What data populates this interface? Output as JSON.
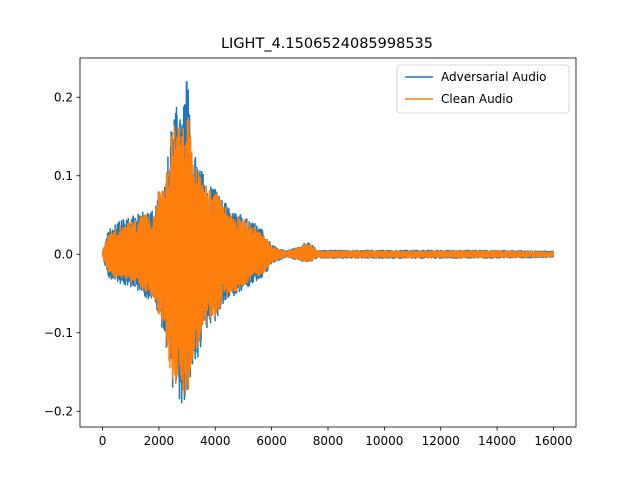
{
  "chart_data": {
    "type": "line",
    "title": "LIGHT_4.1506524085998535",
    "xlabel": "",
    "ylabel": "",
    "xlim": [
      -800,
      16800
    ],
    "ylim": [
      -0.22,
      0.25
    ],
    "x_ticks": [
      {
        "value": 0,
        "label": "0"
      },
      {
        "value": 2000,
        "label": "2000"
      },
      {
        "value": 4000,
        "label": "4000"
      },
      {
        "value": 6000,
        "label": "6000"
      },
      {
        "value": 8000,
        "label": "8000"
      },
      {
        "value": 10000,
        "label": "10000"
      },
      {
        "value": 12000,
        "label": "12000"
      },
      {
        "value": 14000,
        "label": "14000"
      },
      {
        "value": 16000,
        "label": "16000"
      }
    ],
    "y_ticks": [
      {
        "value": -0.2,
        "label": "−0.2"
      },
      {
        "value": -0.1,
        "label": "−0.1"
      },
      {
        "value": 0.0,
        "label": "0.0"
      },
      {
        "value": 0.1,
        "label": "0.1"
      },
      {
        "value": 0.2,
        "label": "0.2"
      }
    ],
    "grid": false,
    "legend_position": "top-right",
    "series": [
      {
        "name": "Adversarial Audio",
        "color": "#1f77b4",
        "num_samples": 16000,
        "approx_range": [
          -0.198,
          0.228
        ],
        "envelope": [
          {
            "x": 0,
            "min": -0.002,
            "max": 0.003
          },
          {
            "x": 200,
            "min": -0.03,
            "max": 0.03
          },
          {
            "x": 500,
            "min": -0.035,
            "max": 0.04
          },
          {
            "x": 800,
            "min": -0.04,
            "max": 0.045
          },
          {
            "x": 1000,
            "min": -0.042,
            "max": 0.048
          },
          {
            "x": 1200,
            "min": -0.045,
            "max": 0.05
          },
          {
            "x": 1500,
            "min": -0.055,
            "max": 0.055
          },
          {
            "x": 1800,
            "min": -0.06,
            "max": 0.055
          },
          {
            "x": 2000,
            "min": -0.085,
            "max": 0.085
          },
          {
            "x": 2200,
            "min": -0.1,
            "max": 0.09
          },
          {
            "x": 2400,
            "min": -0.16,
            "max": 0.15
          },
          {
            "x": 2600,
            "min": -0.185,
            "max": 0.195
          },
          {
            "x": 2800,
            "min": -0.195,
            "max": 0.175
          },
          {
            "x": 3000,
            "min": -0.19,
            "max": 0.228
          },
          {
            "x": 3200,
            "min": -0.14,
            "max": 0.135
          },
          {
            "x": 3400,
            "min": -0.13,
            "max": 0.115
          },
          {
            "x": 3600,
            "min": -0.11,
            "max": 0.1
          },
          {
            "x": 3800,
            "min": -0.09,
            "max": 0.09
          },
          {
            "x": 4000,
            "min": -0.085,
            "max": 0.085
          },
          {
            "x": 4200,
            "min": -0.07,
            "max": 0.075
          },
          {
            "x": 4400,
            "min": -0.06,
            "max": 0.065
          },
          {
            "x": 4600,
            "min": -0.055,
            "max": 0.058
          },
          {
            "x": 4800,
            "min": -0.05,
            "max": 0.055
          },
          {
            "x": 5000,
            "min": -0.045,
            "max": 0.05
          },
          {
            "x": 5200,
            "min": -0.04,
            "max": 0.045
          },
          {
            "x": 5400,
            "min": -0.035,
            "max": 0.04
          },
          {
            "x": 5700,
            "min": -0.03,
            "max": 0.03
          },
          {
            "x": 6000,
            "min": -0.012,
            "max": 0.012
          },
          {
            "x": 6500,
            "min": -0.004,
            "max": 0.004
          },
          {
            "x": 7000,
            "min": -0.008,
            "max": 0.01
          },
          {
            "x": 7200,
            "min": -0.01,
            "max": 0.015
          },
          {
            "x": 7400,
            "min": -0.01,
            "max": 0.015
          },
          {
            "x": 7600,
            "min": -0.005,
            "max": 0.005
          },
          {
            "x": 9000,
            "min": -0.005,
            "max": 0.005
          },
          {
            "x": 12000,
            "min": -0.005,
            "max": 0.005
          },
          {
            "x": 14000,
            "min": -0.005,
            "max": 0.005
          },
          {
            "x": 16000,
            "min": -0.004,
            "max": 0.004
          }
        ]
      },
      {
        "name": "Clean Audio",
        "color": "#ff7f0e",
        "num_samples": 16000,
        "approx_range": [
          -0.185,
          0.195
        ],
        "envelope": [
          {
            "x": 0,
            "min": -0.002,
            "max": 0.003
          },
          {
            "x": 200,
            "min": -0.025,
            "max": 0.025
          },
          {
            "x": 500,
            "min": -0.03,
            "max": 0.035
          },
          {
            "x": 800,
            "min": -0.035,
            "max": 0.04
          },
          {
            "x": 1000,
            "min": -0.038,
            "max": 0.042
          },
          {
            "x": 1200,
            "min": -0.04,
            "max": 0.045
          },
          {
            "x": 1500,
            "min": -0.05,
            "max": 0.05
          },
          {
            "x": 1800,
            "min": -0.055,
            "max": 0.05
          },
          {
            "x": 2000,
            "min": -0.08,
            "max": 0.08
          },
          {
            "x": 2200,
            "min": -0.09,
            "max": 0.085
          },
          {
            "x": 2400,
            "min": -0.15,
            "max": 0.14
          },
          {
            "x": 2600,
            "min": -0.17,
            "max": 0.185
          },
          {
            "x": 2800,
            "min": -0.18,
            "max": 0.16
          },
          {
            "x": 3000,
            "min": -0.185,
            "max": 0.195
          },
          {
            "x": 3200,
            "min": -0.13,
            "max": 0.125
          },
          {
            "x": 3400,
            "min": -0.12,
            "max": 0.105
          },
          {
            "x": 3600,
            "min": -0.1,
            "max": 0.095
          },
          {
            "x": 3800,
            "min": -0.085,
            "max": 0.085
          },
          {
            "x": 4000,
            "min": -0.08,
            "max": 0.08
          },
          {
            "x": 4200,
            "min": -0.065,
            "max": 0.07
          },
          {
            "x": 4400,
            "min": -0.055,
            "max": 0.06
          },
          {
            "x": 4600,
            "min": -0.05,
            "max": 0.052
          },
          {
            "x": 4800,
            "min": -0.045,
            "max": 0.05
          },
          {
            "x": 5000,
            "min": -0.04,
            "max": 0.045
          },
          {
            "x": 5200,
            "min": -0.035,
            "max": 0.04
          },
          {
            "x": 5400,
            "min": -0.03,
            "max": 0.035
          },
          {
            "x": 5700,
            "min": -0.025,
            "max": 0.025
          },
          {
            "x": 6000,
            "min": -0.01,
            "max": 0.01
          },
          {
            "x": 6500,
            "min": -0.003,
            "max": 0.003
          },
          {
            "x": 7000,
            "min": -0.007,
            "max": 0.009
          },
          {
            "x": 7200,
            "min": -0.009,
            "max": 0.013
          },
          {
            "x": 7400,
            "min": -0.009,
            "max": 0.013
          },
          {
            "x": 7600,
            "min": -0.004,
            "max": 0.004
          },
          {
            "x": 9000,
            "min": -0.004,
            "max": 0.004
          },
          {
            "x": 12000,
            "min": -0.004,
            "max": 0.004
          },
          {
            "x": 14000,
            "min": -0.004,
            "max": 0.004
          },
          {
            "x": 16000,
            "min": -0.003,
            "max": 0.003
          }
        ]
      }
    ]
  }
}
